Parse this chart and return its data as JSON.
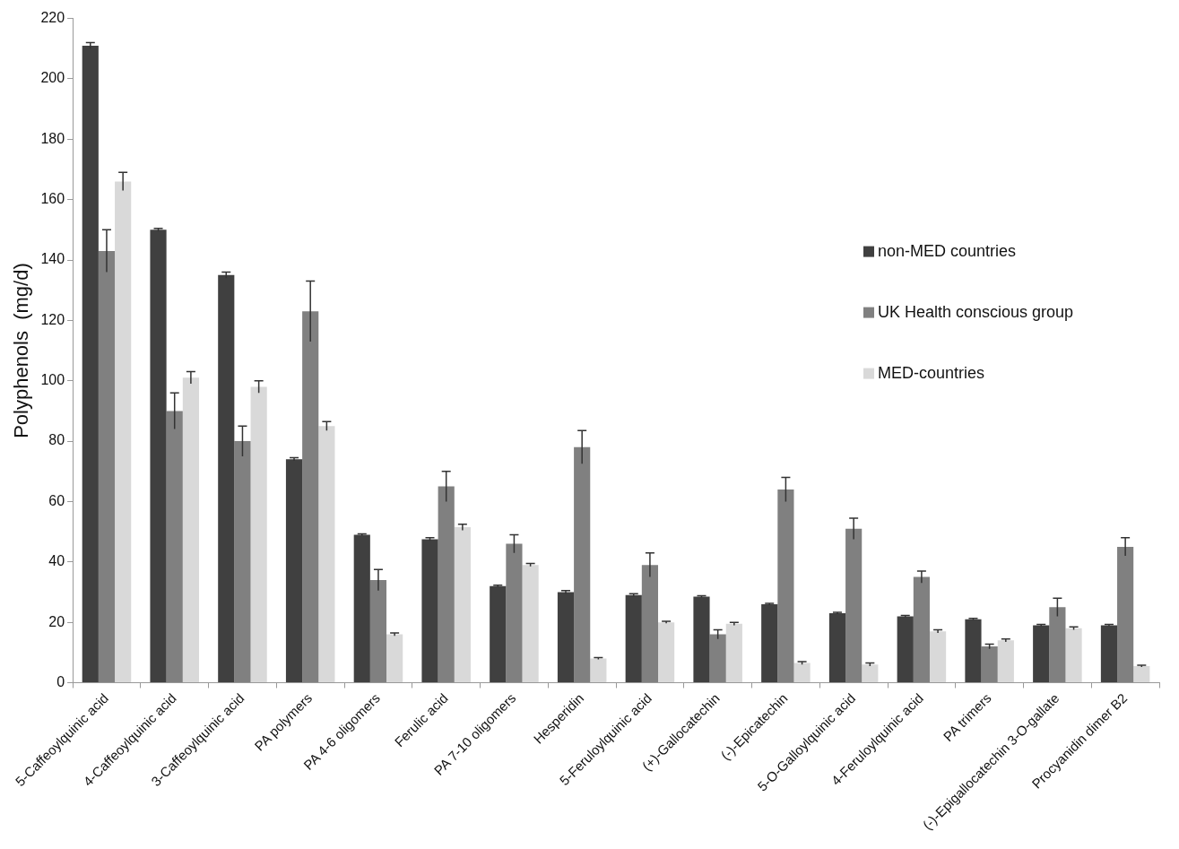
{
  "chart_data": {
    "type": "bar",
    "ylabel": "Polyphenols  (mg/d)",
    "categories": [
      "5-Caffeoylquinic acid",
      "4-Caffeoylquinic acid",
      "3-Caffeoylquinic acid",
      "PA polymers",
      "PA 4-6 oligomers",
      "Ferulic acid",
      "PA 7-10 oligomers",
      "Hesperidin",
      "5-Feruloylquinic acid",
      "(+)-Gallocatechin",
      "(-)-Epicatechin",
      "5-O-Galloylquinic acid",
      "4-Feruloylquinic acid",
      "PA trimers",
      "(-)-Epigallocatechin 3-O-gallate",
      "Procyanidin dimer B2"
    ],
    "series": [
      {
        "name": "non-MED countries",
        "color": "#404040",
        "values": [
          211,
          150,
          135,
          74,
          49,
          47.5,
          32,
          30,
          29,
          28.5,
          26,
          23,
          22,
          21,
          19,
          19
        ],
        "errors": [
          1,
          0.5,
          1,
          0.5,
          0.3,
          0.5,
          0.3,
          0.5,
          0.5,
          0.3,
          0.3,
          0.3,
          0.3,
          0.3,
          0.3,
          0.3
        ]
      },
      {
        "name": "UK Health conscious group",
        "color": "#808080",
        "values": [
          143,
          90,
          80,
          123,
          34,
          65,
          46,
          78,
          39,
          16,
          64,
          51,
          35,
          12,
          25,
          45
        ],
        "errors": [
          7,
          6,
          5,
          10,
          3.5,
          5,
          3,
          5.5,
          4,
          1.5,
          4,
          3.5,
          2,
          0.8,
          3,
          3
        ]
      },
      {
        "name": "MED-countries",
        "color": "#d9d9d9",
        "values": [
          166,
          101,
          98,
          85,
          16,
          51.5,
          39,
          8,
          20,
          19.5,
          6.5,
          6,
          17,
          14,
          18,
          5.5
        ],
        "errors": [
          3,
          2,
          2,
          1.5,
          0.5,
          1,
          0.5,
          0.3,
          0.3,
          0.5,
          0.5,
          0.5,
          0.5,
          0.5,
          0.5,
          0.3
        ]
      }
    ],
    "ylim": [
      0,
      220
    ],
    "yticks": [
      0,
      20,
      40,
      60,
      80,
      100,
      120,
      140,
      160,
      180,
      200,
      220
    ],
    "grid": false,
    "legend": "right"
  }
}
